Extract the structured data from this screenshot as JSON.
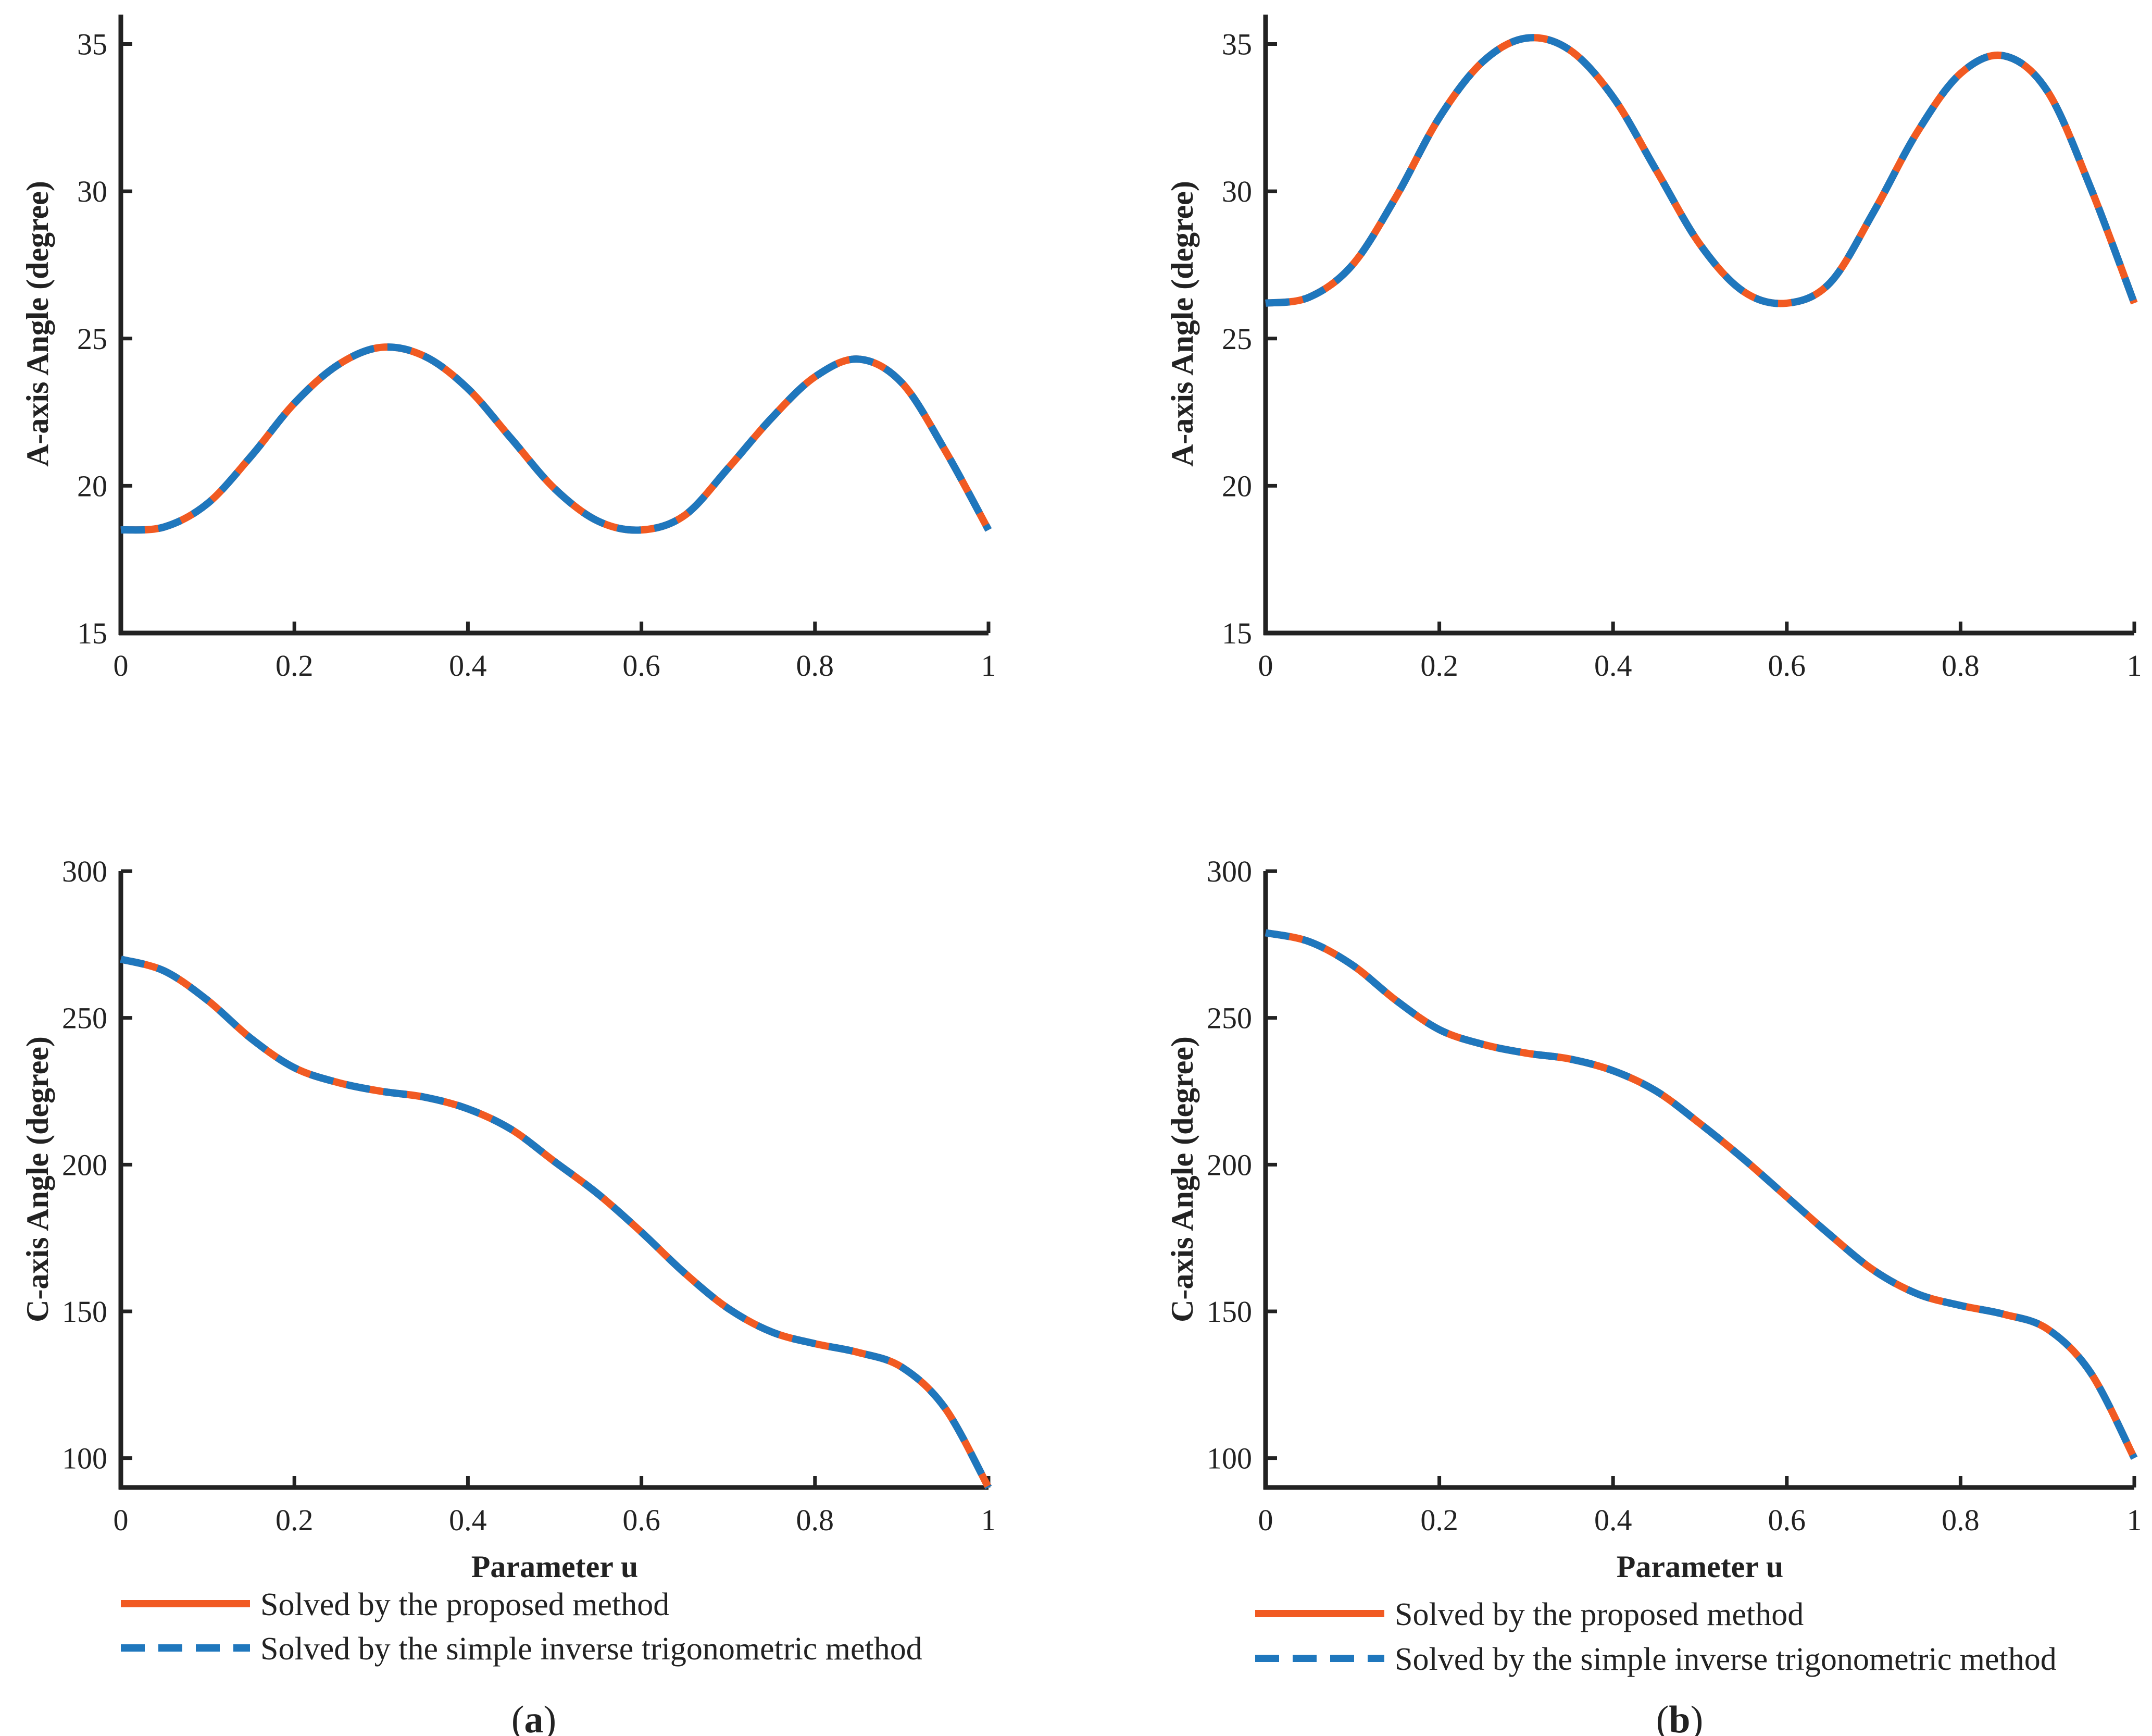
{
  "colors": {
    "proposed": "#F15A22",
    "simple": "#1F77BD",
    "axis": "#222222"
  },
  "legend": {
    "proposed": "Solved by the proposed method",
    "simple": "Solved by the simple inverse trigonometric method"
  },
  "captions": {
    "a": {
      "open": "(",
      "letter": "a",
      "close": ")"
    },
    "b": {
      "open": "(",
      "letter": "b",
      "close": ")"
    }
  },
  "chart_data": [
    {
      "id": "a-top",
      "type": "line",
      "xlabel": "",
      "ylabel": "A-axis Angle (degree)",
      "xlim": [
        0,
        1
      ],
      "ylim": [
        15,
        36
      ],
      "xticks": [
        "0",
        "0.2",
        "0.4",
        "0.6",
        "0.8",
        "1"
      ],
      "xtick_values": [
        0,
        0.2,
        0.4,
        0.6,
        0.8,
        1
      ],
      "yticks": [
        "15",
        "20",
        "25",
        "30",
        "35"
      ],
      "ytick_values": [
        15,
        20,
        25,
        30,
        35
      ],
      "x": [
        0,
        0.05,
        0.1,
        0.15,
        0.2,
        0.25,
        0.3,
        0.35,
        0.4,
        0.45,
        0.5,
        0.55,
        0.6,
        0.65,
        0.7,
        0.75,
        0.8,
        0.85,
        0.9,
        0.95,
        1.0
      ],
      "series": [
        {
          "name": "Solved by the proposed method",
          "values": [
            18.5,
            18.6,
            19.4,
            21.0,
            22.8,
            24.1,
            24.7,
            24.4,
            23.3,
            21.6,
            19.9,
            18.8,
            18.5,
            19.0,
            20.6,
            22.3,
            23.7,
            24.3,
            23.5,
            21.2,
            18.5
          ]
        },
        {
          "name": "Solved by the simple inverse trigonometric method",
          "values": [
            18.5,
            18.6,
            19.4,
            21.0,
            22.8,
            24.1,
            24.7,
            24.4,
            23.3,
            21.6,
            19.9,
            18.8,
            18.5,
            19.0,
            20.6,
            22.3,
            23.7,
            24.3,
            23.5,
            21.2,
            18.5
          ]
        }
      ]
    },
    {
      "id": "b-top",
      "type": "line",
      "xlabel": "",
      "ylabel": "A-axis Angle (degree)",
      "xlim": [
        0,
        1
      ],
      "ylim": [
        15,
        36
      ],
      "xticks": [
        "0",
        "0.2",
        "0.4",
        "0.6",
        "0.8",
        "1"
      ],
      "xtick_values": [
        0,
        0.2,
        0.4,
        0.6,
        0.8,
        1
      ],
      "yticks": [
        "15",
        "20",
        "25",
        "30",
        "35"
      ],
      "ytick_values": [
        15,
        20,
        25,
        30,
        35
      ],
      "x": [
        0,
        0.05,
        0.1,
        0.15,
        0.2,
        0.25,
        0.3,
        0.35,
        0.4,
        0.45,
        0.5,
        0.55,
        0.6,
        0.65,
        0.7,
        0.75,
        0.8,
        0.85,
        0.9,
        0.95,
        1.0
      ],
      "series": [
        {
          "name": "Solved by the proposed method",
          "values": [
            26.2,
            26.4,
            27.5,
            29.8,
            32.5,
            34.4,
            35.2,
            34.8,
            33.2,
            30.7,
            28.2,
            26.6,
            26.2,
            26.9,
            29.3,
            32.0,
            34.0,
            34.6,
            33.4,
            30.1,
            26.2
          ]
        },
        {
          "name": "Solved by the simple inverse trigonometric method",
          "values": [
            26.2,
            26.4,
            27.5,
            29.8,
            32.5,
            34.4,
            35.2,
            34.8,
            33.2,
            30.7,
            28.2,
            26.6,
            26.2,
            26.9,
            29.3,
            32.0,
            34.0,
            34.6,
            33.4,
            30.1,
            26.2
          ]
        }
      ]
    },
    {
      "id": "a-bottom",
      "type": "line",
      "xlabel": "Parameter u",
      "ylabel": "C-axis Angle (degree)",
      "xlim": [
        0,
        1
      ],
      "ylim": [
        90,
        300
      ],
      "xticks": [
        "0",
        "0.2",
        "0.4",
        "0.6",
        "0.8",
        "1"
      ],
      "xtick_values": [
        0,
        0.2,
        0.4,
        0.6,
        0.8,
        1
      ],
      "yticks": [
        "100",
        "150",
        "200",
        "250",
        "300"
      ],
      "ytick_values": [
        100,
        150,
        200,
        250,
        300
      ],
      "x": [
        0,
        0.05,
        0.1,
        0.15,
        0.2,
        0.25,
        0.3,
        0.35,
        0.4,
        0.45,
        0.5,
        0.55,
        0.6,
        0.65,
        0.7,
        0.75,
        0.8,
        0.85,
        0.9,
        0.95,
        1.0
      ],
      "series": [
        {
          "name": "Solved by the proposed method",
          "values": [
            270,
            266,
            256,
            243,
            233,
            228,
            225,
            223,
            219,
            212,
            201,
            190,
            177,
            163,
            151,
            143,
            139,
            136,
            131,
            117,
            90
          ]
        },
        {
          "name": "Solved by the simple inverse trigonometric method",
          "values": [
            270,
            266,
            256,
            243,
            233,
            228,
            225,
            223,
            219,
            212,
            201,
            190,
            177,
            163,
            151,
            143,
            139,
            136,
            131,
            117,
            90
          ]
        }
      ]
    },
    {
      "id": "b-bottom",
      "type": "line",
      "xlabel": "Parameter u",
      "ylabel": "C-axis Angle (degree)",
      "xlim": [
        0,
        1
      ],
      "ylim": [
        90,
        300
      ],
      "xticks": [
        "0",
        "0.2",
        "0.4",
        "0.6",
        "0.8",
        "1"
      ],
      "xtick_values": [
        0,
        0.2,
        0.4,
        0.6,
        0.8,
        1
      ],
      "yticks": [
        "100",
        "150",
        "200",
        "250",
        "300"
      ],
      "ytick_values": [
        100,
        150,
        200,
        250,
        300
      ],
      "x": [
        0,
        0.05,
        0.1,
        0.15,
        0.2,
        0.25,
        0.3,
        0.35,
        0.4,
        0.45,
        0.5,
        0.55,
        0.6,
        0.65,
        0.7,
        0.75,
        0.8,
        0.85,
        0.9,
        0.95,
        1.0
      ],
      "series": [
        {
          "name": "Solved by the proposed method",
          "values": [
            279,
            276,
            268,
            256,
            246,
            241,
            238,
            236,
            232,
            225,
            214,
            202,
            189,
            176,
            164,
            156,
            152,
            149,
            144,
            129,
            100
          ]
        },
        {
          "name": "Solved by the simple inverse trigonometric method",
          "values": [
            279,
            276,
            268,
            256,
            246,
            241,
            238,
            236,
            232,
            225,
            214,
            202,
            189,
            176,
            164,
            156,
            152,
            149,
            144,
            129,
            100
          ]
        }
      ]
    }
  ]
}
